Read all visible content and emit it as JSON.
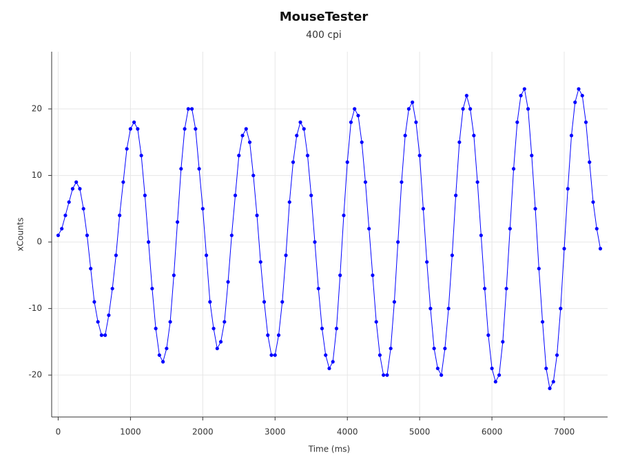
{
  "chart_data": {
    "type": "line",
    "title": "MouseTester",
    "subtitle": "400 cpi",
    "x_label": "Time (ms)",
    "y_label": "xCounts",
    "x": [
      0,
      50,
      100,
      150,
      200,
      250,
      300,
      350,
      400,
      450,
      500,
      550,
      600,
      650,
      700,
      750,
      800,
      850,
      900,
      950,
      1000,
      1050,
      1100,
      1150,
      1200,
      1250,
      1300,
      1350,
      1400,
      1450,
      1500,
      1550,
      1600,
      1650,
      1700,
      1750,
      1800,
      1850,
      1900,
      1950,
      2000,
      2050,
      2100,
      2150,
      2200,
      2250,
      2300,
      2350,
      2400,
      2450,
      2500,
      2550,
      2600,
      2650,
      2700,
      2750,
      2800,
      2850,
      2900,
      2950,
      3000,
      3050,
      3100,
      3150,
      3200,
      3250,
      3300,
      3350,
      3400,
      3450,
      3500,
      3550,
      3600,
      3650,
      3700,
      3750,
      3800,
      3850,
      3900,
      3950,
      4000,
      4050,
      4100,
      4150,
      4200,
      4250,
      4300,
      4350,
      4400,
      4450,
      4500,
      4550,
      4600,
      4650,
      4700,
      4750,
      4800,
      4850,
      4900,
      4950,
      5000,
      5050,
      5100,
      5150,
      5200,
      5250,
      5300,
      5350,
      5400,
      5450,
      5500,
      5550,
      5600,
      5650,
      5700,
      5750,
      5800,
      5850,
      5900,
      5950,
      6000,
      6050,
      6100,
      6150,
      6200,
      6250,
      6300,
      6350,
      6400,
      6450,
      6500,
      6550,
      6600,
      6650,
      6700,
      6750,
      6800,
      6850,
      6900,
      6950,
      7000,
      7050,
      7100,
      7150,
      7200,
      7250,
      7300,
      7350,
      7400,
      7450,
      7500
    ],
    "series": [
      {
        "color": "#0000ff",
        "values": [
          1,
          2,
          4,
          6,
          8,
          9,
          8,
          5,
          1,
          -4,
          -9,
          -12,
          -14,
          -14,
          -11,
          -7,
          -2,
          4,
          9,
          14,
          17,
          18,
          17,
          13,
          7,
          0,
          -7,
          -13,
          -17,
          -18,
          -16,
          -12,
          -5,
          3,
          11,
          17,
          20,
          20,
          17,
          11,
          5,
          -2,
          -9,
          -13,
          -16,
          -15,
          -12,
          -6,
          1,
          7,
          13,
          16,
          17,
          15,
          10,
          4,
          -3,
          -9,
          -14,
          -17,
          -17,
          -14,
          -9,
          -2,
          6,
          12,
          16,
          18,
          17,
          13,
          7,
          0,
          -7,
          -13,
          -17,
          -19,
          -18,
          -13,
          -5,
          4,
          12,
          18,
          20,
          19,
          15,
          9,
          2,
          -5,
          -12,
          -17,
          -20,
          -20,
          -16,
          -9,
          0,
          9,
          16,
          20,
          21,
          18,
          13,
          5,
          -3,
          -10,
          -16,
          -19,
          -20,
          -16,
          -10,
          -2,
          7,
          15,
          20,
          22,
          20,
          16,
          9,
          1,
          -7,
          -14,
          -19,
          -21,
          -20,
          -15,
          -7,
          2,
          11,
          18,
          22,
          23,
          20,
          13,
          5,
          -4,
          -12,
          -19,
          -22,
          -21,
          -17,
          -10,
          -1,
          8,
          16,
          21,
          23,
          22,
          18,
          12,
          6,
          2,
          -1
        ]
      }
    ],
    "xlim": [
      -90,
      7600
    ],
    "xticks": [
      0,
      1000,
      2000,
      3000,
      4000,
      5000,
      6000,
      7000
    ],
    "ylim": [
      -26.3,
      28.6
    ],
    "yticks": [
      -20,
      -10,
      0,
      10,
      20
    ],
    "grid": true,
    "markers": true
  }
}
